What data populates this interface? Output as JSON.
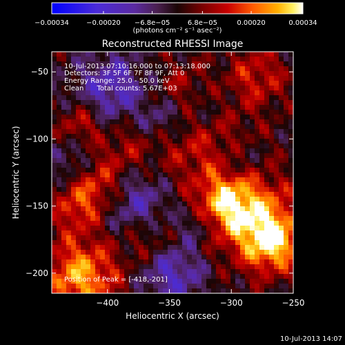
{
  "chart_data": {
    "type": "heatmap",
    "title": "Reconstructed RHESSI Image",
    "xlabel": "Heliocentric X (arcsec)",
    "ylabel": "Heliocentric Y (arcsec)",
    "xlim": [
      -445,
      -250
    ],
    "ylim": [
      -215,
      -35
    ],
    "x_ticks": [
      -400,
      -350,
      -300,
      -250
    ],
    "y_ticks": [
      -50,
      -100,
      -150,
      -200
    ],
    "colorbar": {
      "vmin": -0.00034,
      "vmax": 0.00034,
      "tick_values": [
        -0.00034,
        -0.0002,
        -6.8e-05,
        6.8e-05,
        0.0002,
        0.00034
      ],
      "tick_labels": [
        "-0.00034",
        "-0.00020",
        "-6.8e-05",
        "6.8e-05",
        "0.00020",
        "0.00034"
      ],
      "unit": "(photons cm⁻² s⁻¹ asec⁻²)",
      "colormap": "rhessi blue-purple-red-yellow-white"
    },
    "annotations": [
      "10-Jul-2013 07:10:16.000 to 07:13:18.000",
      "Detectors: 3F 5F 6F 7F 8F 9F, Att 0",
      "Energy Range: 25.0 - 50.0 keV",
      "Clean      Total counts: 5.67E+03"
    ],
    "peak_label": "Position of Peak = [-418,-201]",
    "peak_position": [
      -418,
      -201
    ],
    "colors": {
      "background": "#000000",
      "text": "#ffffff"
    }
  },
  "footer": {
    "date_stamp": "10-Jul-2013 14:07"
  }
}
